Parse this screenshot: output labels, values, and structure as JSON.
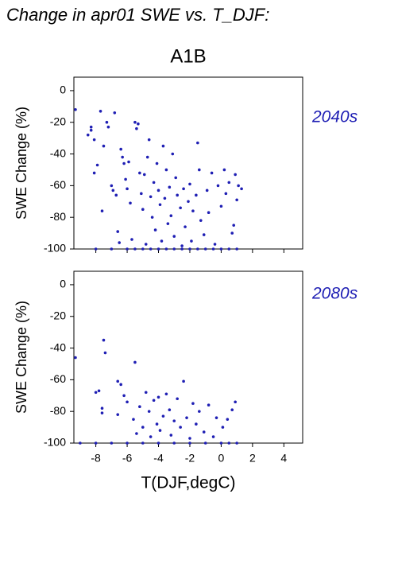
{
  "chart_data": [
    {
      "type": "scatter",
      "title": "Change in apr01 SWE vs. T_DJF:",
      "subtitle": "A1B",
      "annotation": "2040s",
      "ylabel": "SWE Change (%)",
      "color": "#1f1fb4",
      "annotation_color": "#1f1fb4",
      "xlim": [
        -9.4,
        5.2
      ],
      "ylim": [
        -100,
        8.5
      ],
      "xticks": [
        -8,
        -6,
        -4,
        -2,
        0,
        2,
        4
      ],
      "yticks": [
        -100,
        -80,
        -60,
        -40,
        -20,
        0
      ],
      "show_xtick_labels": false,
      "x": [
        -9.3,
        -8.5,
        -8.3,
        -8.3,
        -8.1,
        -8.1,
        -7.9,
        -7.7,
        -7.6,
        -7.5,
        -7.3,
        -7.2,
        -7.0,
        -6.9,
        -6.8,
        -6.7,
        -6.6,
        -6.5,
        -6.4,
        -6.3,
        -6.2,
        -6.1,
        -6.0,
        -5.9,
        -5.8,
        -5.7,
        -5.5,
        -5.4,
        -5.3,
        -5.2,
        -5.1,
        -5.0,
        -4.9,
        -4.8,
        -4.7,
        -4.6,
        -4.5,
        -4.4,
        -4.3,
        -4.2,
        -4.1,
        -4.0,
        -3.9,
        -3.8,
        -3.7,
        -3.6,
        -3.5,
        -3.4,
        -3.3,
        -3.2,
        -3.1,
        -3.0,
        -2.9,
        -2.8,
        -2.6,
        -2.5,
        -2.4,
        -2.3,
        -2.1,
        -2.0,
        -1.9,
        -1.8,
        -1.6,
        -1.5,
        -1.4,
        -1.3,
        -1.1,
        -0.9,
        -0.8,
        -0.6,
        -0.4,
        -0.2,
        0.0,
        0.2,
        0.3,
        0.5,
        0.7,
        0.8,
        0.9,
        1.0,
        1.1,
        1.3,
        -8,
        -7,
        -6,
        -5.5,
        -5,
        -4.5,
        -4,
        -3.5,
        -3,
        -2.5,
        -2,
        -1.5,
        -1,
        -0.5,
        0,
        0.5,
        1
      ],
      "y": [
        -12,
        -28,
        -25,
        -23,
        -31,
        -52,
        -47,
        -13,
        -76,
        -35,
        -20,
        -23,
        -60,
        -63,
        -14,
        -66,
        -89,
        -96,
        -37,
        -42,
        -46,
        -56,
        -62,
        -45,
        -71,
        -94,
        -20,
        -24,
        -21,
        -52,
        -65,
        -75,
        -53,
        -97,
        -42,
        -31,
        -67,
        -80,
        -58,
        -88,
        -46,
        -63,
        -72,
        -95,
        -35,
        -68,
        -50,
        -84,
        -61,
        -79,
        -40,
        -92,
        -55,
        -66,
        -74,
        -98,
        -62,
        -86,
        -70,
        -59,
        -95,
        -76,
        -66,
        -33,
        -50,
        -82,
        -91,
        -63,
        -77,
        -52,
        -97,
        -60,
        -73,
        -50,
        -65,
        -58,
        -90,
        -85,
        -53,
        -69,
        -60,
        -62,
        -100,
        -100,
        -100,
        -100,
        -100,
        -100,
        -100,
        -100,
        -100,
        -100,
        -100,
        -100,
        -100,
        -100,
        -100,
        -100,
        -100
      ]
    },
    {
      "type": "scatter",
      "annotation": "2080s",
      "ylabel": "SWE Change (%)",
      "xlabel": "T(DJF,degC)",
      "color": "#1f1fb4",
      "annotation_color": "#1f1fb4",
      "xlim": [
        -9.4,
        5.2
      ],
      "ylim": [
        -100,
        8.5
      ],
      "xticks": [
        -8,
        -6,
        -4,
        -2,
        0,
        2,
        4
      ],
      "yticks": [
        -100,
        -80,
        -60,
        -40,
        -20,
        0
      ],
      "show_xtick_labels": true,
      "x": [
        -9.3,
        -8.0,
        -7.8,
        -7.6,
        -7.5,
        -7.4,
        -7.6,
        -6.6,
        -6.6,
        -6.4,
        -6.2,
        -6.0,
        -5.6,
        -5.5,
        -5.4,
        -5.2,
        -5.0,
        -4.8,
        -4.6,
        -4.5,
        -4.3,
        -4.1,
        -4.0,
        -3.9,
        -3.7,
        -3.5,
        -3.3,
        -3.2,
        -3.0,
        -2.8,
        -2.6,
        -2.4,
        -2.2,
        -2.0,
        -1.8,
        -1.6,
        -1.4,
        -1.1,
        -0.8,
        -0.5,
        -0.3,
        0.1,
        0.4,
        0.7,
        0.9,
        -9,
        -8,
        -7,
        -6,
        -5,
        -4,
        -3,
        -2,
        -1,
        0,
        0.5,
        1
      ],
      "y": [
        -46,
        -68,
        -67,
        -78,
        -35,
        -43,
        -81,
        -82,
        -61,
        -63,
        -70,
        -74,
        -85,
        -49,
        -94,
        -77,
        -90,
        -68,
        -80,
        -96,
        -73,
        -88,
        -71,
        -92,
        -83,
        -69,
        -79,
        -95,
        -86,
        -72,
        -90,
        -61,
        -84,
        -97,
        -75,
        -88,
        -80,
        -93,
        -76,
        -96,
        -84,
        -90,
        -85,
        -79,
        -74,
        -100,
        -100,
        -100,
        -100,
        -100,
        -100,
        -100,
        -100,
        -100,
        -100,
        -100,
        -100
      ]
    }
  ]
}
